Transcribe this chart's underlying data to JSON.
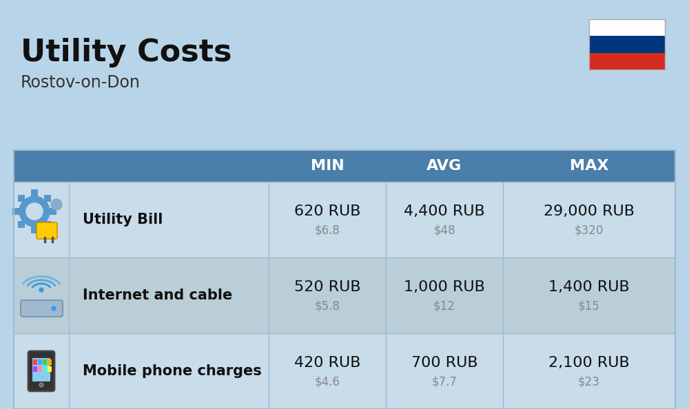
{
  "title": "Utility Costs",
  "subtitle": "Rostov-on-Don",
  "bg_color": "#b8d4e8",
  "header_bg": "#4a7eab",
  "header_text_color": "#ffffff",
  "row_bg_even": "#c8dcea",
  "row_bg_odd": "#baced8",
  "header_labels": [
    "MIN",
    "AVG",
    "MAX"
  ],
  "rows": [
    {
      "label": "Utility Bill",
      "min_rub": "620 RUB",
      "min_usd": "$6.8",
      "avg_rub": "4,400 RUB",
      "avg_usd": "$48",
      "max_rub": "29,000 RUB",
      "max_usd": "$320",
      "icon": "utility"
    },
    {
      "label": "Internet and cable",
      "min_rub": "520 RUB",
      "min_usd": "$5.8",
      "avg_rub": "1,000 RUB",
      "avg_usd": "$12",
      "max_rub": "1,400 RUB",
      "max_usd": "$15",
      "icon": "internet"
    },
    {
      "label": "Mobile phone charges",
      "min_rub": "420 RUB",
      "min_usd": "$4.6",
      "avg_rub": "700 RUB",
      "avg_usd": "$7.7",
      "max_rub": "2,100 RUB",
      "max_usd": "$23",
      "icon": "mobile"
    }
  ],
  "flag_white": "#ffffff",
  "flag_blue": "#003580",
  "flag_red": "#d52b1e",
  "rub_fontsize": 16,
  "usd_fontsize": 12,
  "label_fontsize": 15,
  "title_fontsize": 32,
  "subtitle_fontsize": 17,
  "header_fontsize": 16
}
